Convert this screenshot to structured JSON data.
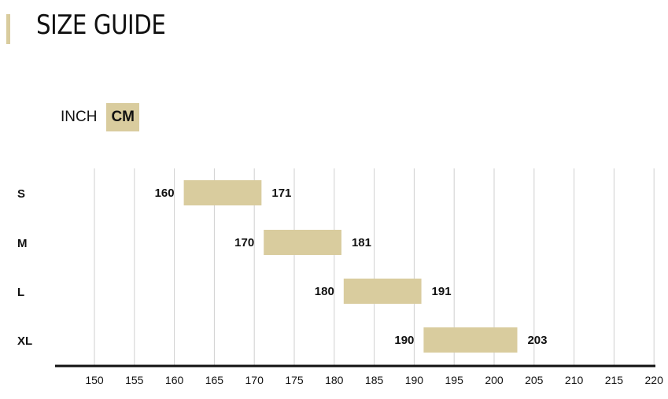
{
  "header": {
    "title": "SIZE GUIDE"
  },
  "units": {
    "inch_label": "INCH",
    "cm_label": "CM",
    "selected": "CM"
  },
  "colors": {
    "accent": "#d9cc9e",
    "grid": "#cfcfcf",
    "axis": "#111111"
  },
  "chart_data": {
    "type": "bar",
    "orientation": "horizontal-range",
    "categories": [
      "S",
      "M",
      "L",
      "XL"
    ],
    "ranges": [
      {
        "size": "S",
        "min": 160,
        "max": 171
      },
      {
        "size": "M",
        "min": 170,
        "max": 181
      },
      {
        "size": "L",
        "min": 180,
        "max": 191
      },
      {
        "size": "XL",
        "min": 190,
        "max": 203
      }
    ],
    "xlim": [
      145,
      220
    ],
    "xticks": [
      150,
      155,
      160,
      165,
      170,
      175,
      180,
      185,
      190,
      195,
      200,
      205,
      210,
      215,
      220
    ],
    "grid": true
  }
}
